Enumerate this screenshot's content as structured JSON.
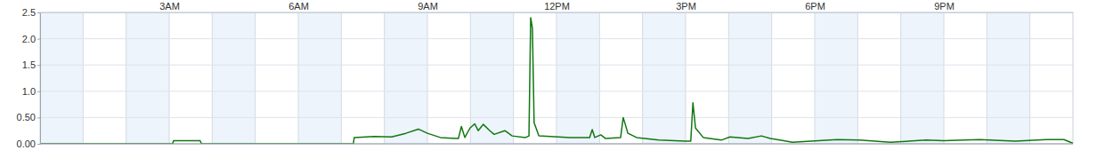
{
  "chart_data": {
    "type": "line",
    "color": "#117711",
    "grid": true,
    "xlim": [
      0,
      24
    ],
    "xticks": [
      {
        "value": 3,
        "label": "3AM"
      },
      {
        "value": 6,
        "label": "6AM"
      },
      {
        "value": 9,
        "label": "9AM"
      },
      {
        "value": 12,
        "label": "12PM"
      },
      {
        "value": 15,
        "label": "3PM"
      },
      {
        "value": 18,
        "label": "6PM"
      },
      {
        "value": 21,
        "label": "9PM"
      }
    ],
    "ylim": [
      0,
      2.5
    ],
    "yticks": [
      {
        "value": 0,
        "label": "0.00"
      },
      {
        "value": 0.5,
        "label": "0.50"
      },
      {
        "value": 1,
        "label": "1.0"
      },
      1.5,
      {
        "value": 2,
        "label": "2.0"
      },
      2.5
    ],
    "x": [
      0,
      3.08,
      3.1,
      3.72,
      3.75,
      7.28,
      7.3,
      7.76,
      8.17,
      8.5,
      8.79,
      9.0,
      9.3,
      9.72,
      9.79,
      9.87,
      9.99,
      10.1,
      10.18,
      10.3,
      10.45,
      10.55,
      10.8,
      10.97,
      11.28,
      11.36,
      11.4,
      11.44,
      11.48,
      11.59,
      12.31,
      12.77,
      12.83,
      12.89,
      13.03,
      13.14,
      13.49,
      13.55,
      13.66,
      13.86,
      14.38,
      15.0,
      15.12,
      15.17,
      15.23,
      15.41,
      15.83,
      16.03,
      16.45,
      16.76,
      16.97,
      17.28,
      17.48,
      18.52,
      19.03,
      19.76,
      20.59,
      21.0,
      21.83,
      22.66,
      23.38,
      23.79,
      24
    ],
    "values": [
      0,
      0,
      0.06,
      0.06,
      0,
      0,
      0.12,
      0.14,
      0.13,
      0.2,
      0.28,
      0.2,
      0.12,
      0.1,
      0.33,
      0.12,
      0.3,
      0.38,
      0.25,
      0.37,
      0.25,
      0.18,
      0.25,
      0.15,
      0.12,
      0.15,
      2.4,
      2.2,
      0.4,
      0.15,
      0.12,
      0.12,
      0.27,
      0.12,
      0.17,
      0.1,
      0.12,
      0.5,
      0.2,
      0.12,
      0.07,
      0.05,
      0.05,
      0.78,
      0.3,
      0.12,
      0.07,
      0.13,
      0.1,
      0.15,
      0.1,
      0.06,
      0.03,
      0.08,
      0.07,
      0.03,
      0.07,
      0.06,
      0.08,
      0.05,
      0.08,
      0.08,
      0.01
    ]
  }
}
